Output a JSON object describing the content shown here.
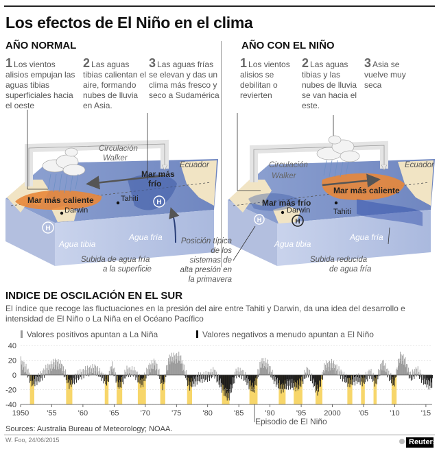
{
  "title": "Los efectos de El Niño en el clima",
  "normal": {
    "heading": "AÑO NORMAL",
    "steps": [
      {
        "num": "1",
        "text": "Los vientos alisios empujan las aguas tibias superficiales hacia el oeste"
      },
      {
        "num": "2",
        "text": "Las aguas tibias calientan el aire, formando nubes de lluvia en Asia."
      },
      {
        "num": "3",
        "text": "Las aguas frías se elevan y das un clima más fresco y seco a Sudamérica"
      }
    ],
    "labels": {
      "walker": "Circulación Walker",
      "ecuador": "Ecuador",
      "hot": "Mar más caliente",
      "cold": "Mar más frío",
      "darwin": "Darwin",
      "tahiti": "Tahiti",
      "warm_water": "Agua tibia",
      "cold_water": "Agua fría",
      "upwelling": "Subida de agua fría a la superficie"
    }
  },
  "nino": {
    "heading": "AÑO CON EL NIÑO",
    "steps": [
      {
        "num": "1",
        "text": "Los vientos alisios se debilitan o revierten"
      },
      {
        "num": "2",
        "text": "Las aguas tibias y las nubes de lluvia se van hacia el este."
      },
      {
        "num": "3",
        "text": "Asia se vuelve muy seca"
      }
    ],
    "labels": {
      "walker": "Circulación Walker",
      "ecuador": "Ecuador",
      "hot": "Mar más caliente",
      "cold": "Mar más frío",
      "darwin": "Darwin",
      "tahiti": "Tahiti",
      "warm_water": "Agua tibia",
      "cold_water": "Agua fría",
      "upwelling": "Subida reducida de agua fría"
    }
  },
  "high_pressure_note": "Posición típica de los sistemas de alta presión en la primavera",
  "high_symbol": "H",
  "index": {
    "heading": "INDICE DE OSCILACIÓN EN EL SUR",
    "description": "El índice que recoge las fluctuaciones en la presión del aire entre Tahiti y Darwin, da una idea del desarrollo e intensidad de El Niño o La Niña en el Océano Pacífico",
    "legend_positive": "Valores positivos apuntan a La Niña",
    "legend_negative": "Valores negativos a menudo apuntan a El Niño",
    "episode_label": "Episodio de El Niño",
    "sources": "Sources: Australia Bureau of Meteorology; NOAA.",
    "credit": "W. Foo, 24/06/2015",
    "brand": "Reuters"
  },
  "chart_data": {
    "type": "bar",
    "title": "",
    "xlabel": "",
    "ylabel": "",
    "ylim": [
      -40,
      40
    ],
    "yticks": [
      40,
      20,
      0,
      -20,
      -40
    ],
    "xlim": [
      1950,
      2016
    ],
    "xticks": [
      {
        "year": 1950,
        "label": "1950"
      },
      {
        "year": 1955,
        "label": "'55"
      },
      {
        "year": 1960,
        "label": "'60"
      },
      {
        "year": 1965,
        "label": "'65"
      },
      {
        "year": 1970,
        "label": "'70"
      },
      {
        "year": 1975,
        "label": "'75"
      },
      {
        "year": 1980,
        "label": "'80"
      },
      {
        "year": 1985,
        "label": "'85"
      },
      {
        "year": 1990,
        "label": "'90"
      },
      {
        "year": 1995,
        "label": "'95"
      },
      {
        "year": 2000,
        "label": "2000"
      },
      {
        "year": 2005,
        "label": "'05"
      },
      {
        "year": 2010,
        "label": "'10"
      },
      {
        "year": 2015,
        "label": "'15"
      }
    ],
    "el_nino_episodes": [
      [
        1951.5,
        1952.2
      ],
      [
        1957.3,
        1958.3
      ],
      [
        1963.5,
        1964.1
      ],
      [
        1965.4,
        1966.3
      ],
      [
        1968.8,
        1970.1
      ],
      [
        1972.4,
        1973.2
      ],
      [
        1976.7,
        1977.5
      ],
      [
        1982.3,
        1983.5
      ],
      [
        1986.7,
        1988.0
      ],
      [
        1991.4,
        1992.5
      ],
      [
        1993.8,
        1995.2
      ],
      [
        1997.3,
        1998.4
      ],
      [
        2002.4,
        2003.2
      ],
      [
        2004.6,
        2005.2
      ],
      [
        2006.6,
        2007.1
      ],
      [
        2009.5,
        2010.3
      ]
    ],
    "soi_samples": [
      {
        "year": 1950.0,
        "value": 18
      },
      {
        "year": 1951.0,
        "value": 5
      },
      {
        "year": 1951.8,
        "value": -10
      },
      {
        "year": 1953.0,
        "value": -4
      },
      {
        "year": 1954.0,
        "value": 6
      },
      {
        "year": 1955.5,
        "value": 16
      },
      {
        "year": 1956.5,
        "value": 12
      },
      {
        "year": 1957.8,
        "value": -12
      },
      {
        "year": 1959.0,
        "value": -2
      },
      {
        "year": 1960.5,
        "value": 5
      },
      {
        "year": 1962.0,
        "value": 8
      },
      {
        "year": 1963.8,
        "value": -9
      },
      {
        "year": 1964.6,
        "value": 12
      },
      {
        "year": 1965.8,
        "value": -15
      },
      {
        "year": 1967.0,
        "value": 5
      },
      {
        "year": 1968.2,
        "value": 4
      },
      {
        "year": 1969.4,
        "value": -12
      },
      {
        "year": 1970.6,
        "value": 10
      },
      {
        "year": 1971.5,
        "value": 16
      },
      {
        "year": 1972.8,
        "value": -14
      },
      {
        "year": 1973.8,
        "value": 22
      },
      {
        "year": 1975.5,
        "value": 24
      },
      {
        "year": 1977.0,
        "value": -14
      },
      {
        "year": 1978.5,
        "value": -4
      },
      {
        "year": 1980.0,
        "value": -2
      },
      {
        "year": 1981.0,
        "value": 4
      },
      {
        "year": 1982.8,
        "value": -25
      },
      {
        "year": 1983.3,
        "value": -30
      },
      {
        "year": 1984.5,
        "value": 3
      },
      {
        "year": 1985.5,
        "value": 2
      },
      {
        "year": 1987.3,
        "value": -20
      },
      {
        "year": 1988.6,
        "value": 18
      },
      {
        "year": 1989.5,
        "value": 14
      },
      {
        "year": 1990.5,
        "value": -4
      },
      {
        "year": 1991.8,
        "value": -18
      },
      {
        "year": 1992.8,
        "value": -12
      },
      {
        "year": 1994.5,
        "value": -15
      },
      {
        "year": 1996.0,
        "value": 6
      },
      {
        "year": 1997.6,
        "value": -22
      },
      {
        "year": 1998.8,
        "value": 12
      },
      {
        "year": 2000.0,
        "value": 14
      },
      {
        "year": 2001.0,
        "value": 4
      },
      {
        "year": 2002.6,
        "value": -10
      },
      {
        "year": 2004.0,
        "value": -5
      },
      {
        "year": 2004.9,
        "value": -8
      },
      {
        "year": 2006.0,
        "value": 3
      },
      {
        "year": 2006.9,
        "value": -10
      },
      {
        "year": 2008.0,
        "value": 16
      },
      {
        "year": 2009.8,
        "value": -12
      },
      {
        "year": 2010.8,
        "value": 25
      },
      {
        "year": 2011.5,
        "value": 20
      },
      {
        "year": 2012.5,
        "value": -3
      },
      {
        "year": 2013.5,
        "value": 6
      },
      {
        "year": 2014.5,
        "value": -6
      },
      {
        "year": 2015.4,
        "value": -12
      }
    ]
  },
  "colors": {
    "ocean_top": "#7f95c7",
    "ocean_side": "#b8c5e3",
    "land": "#f1e4c4",
    "hot": "#e8873a",
    "episode": "#f7d66a",
    "positive_bar": "#999999",
    "negative_bar": "#1a1a1a"
  }
}
